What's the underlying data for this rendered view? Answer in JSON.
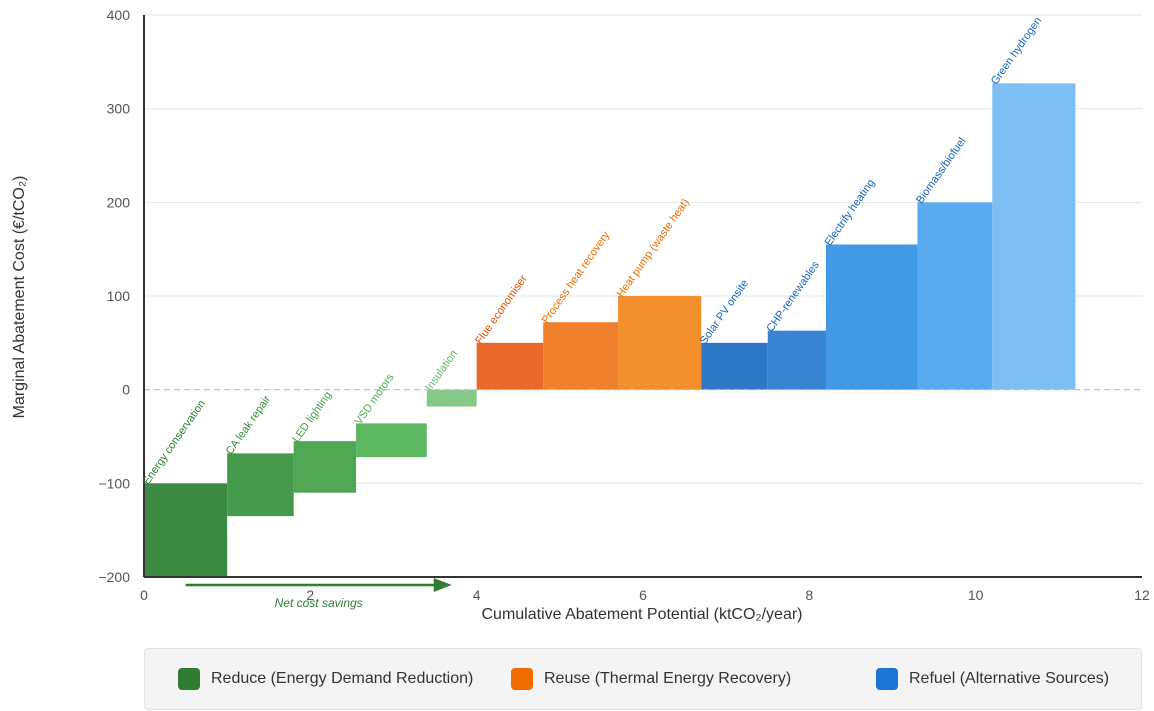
{
  "chart_data": {
    "type": "bar",
    "subtype": "marginal-abatement-cost-curve",
    "xlabel": "Cumulative Abatement Potential (ktCO₂/year)",
    "ylabel": "Marginal Abatement Cost (€/tCO₂)",
    "xlim": [
      0,
      12
    ],
    "ylim": [
      -200,
      400
    ],
    "xticks": [
      0,
      2,
      4,
      6,
      8,
      10,
      12
    ],
    "yticks": [
      -200,
      -100,
      0,
      100,
      200,
      300,
      400
    ],
    "ytick_labels": [
      "−200",
      "−100",
      "0",
      "100",
      "200",
      "300",
      "400"
    ],
    "grid": "horizontal",
    "legend_position": "bottom",
    "groups": [
      {
        "name": "Reduce (Energy Demand Reduction)",
        "color": "#2e7d32"
      },
      {
        "name": "Reuse (Thermal Energy Recovery)",
        "color": "#ef6c00"
      },
      {
        "name": "Refuel (Alternative Sources)",
        "color": "#1976d2"
      }
    ],
    "measures": [
      {
        "label": "Energy conservation",
        "group": 0,
        "x_start": 0.0,
        "potential": 1.0,
        "cost_low": -200,
        "cost_high": -100,
        "color": "#3d8a43",
        "label_color": "#2e7d32"
      },
      {
        "label": "CA leak repair",
        "group": 0,
        "x_start": 1.0,
        "potential": 0.8,
        "cost_low": -135,
        "cost_high": -68,
        "color": "#459b4b",
        "label_color": "#388e3c"
      },
      {
        "label": "LED lighting",
        "group": 0,
        "x_start": 1.8,
        "potential": 0.75,
        "cost_low": -110,
        "cost_high": -55,
        "color": "#4fa653",
        "label_color": "#43a047"
      },
      {
        "label": "VSD motors",
        "group": 0,
        "x_start": 2.55,
        "potential": 0.85,
        "cost_low": -72,
        "cost_high": -36,
        "color": "#5cb860",
        "label_color": "#4caf50"
      },
      {
        "label": "Insulation",
        "group": 0,
        "x_start": 3.4,
        "potential": 0.6,
        "cost_low": -18,
        "cost_high": 0,
        "color": "#86c888",
        "label_color": "#66bb6a"
      },
      {
        "label": "Flue economiser",
        "group": 1,
        "x_start": 4.0,
        "potential": 0.8,
        "cost_low": 0,
        "cost_high": 50,
        "color": "#e8692a",
        "label_color": "#e65100"
      },
      {
        "label": "Process heat recovery",
        "group": 1,
        "x_start": 4.8,
        "potential": 0.9,
        "cost_low": 0,
        "cost_high": 72,
        "color": "#ef7f2a",
        "label_color": "#ef6c00"
      },
      {
        "label": "Heat pump (waste heat)",
        "group": 1,
        "x_start": 5.7,
        "potential": 1.0,
        "cost_low": 0,
        "cost_high": 100,
        "color": "#f38f2c",
        "label_color": "#ef6c00"
      },
      {
        "label": "Solar PV onsite",
        "group": 2,
        "x_start": 6.7,
        "potential": 0.8,
        "cost_low": 0,
        "cost_high": 50,
        "color": "#2f78c8",
        "label_color": "#1565c0"
      },
      {
        "label": "CHP-renewables",
        "group": 2,
        "x_start": 7.5,
        "potential": 0.7,
        "cost_low": 0,
        "cost_high": 63,
        "color": "#3a84d4",
        "label_color": "#1565c0"
      },
      {
        "label": "Electrify heating",
        "group": 2,
        "x_start": 8.2,
        "potential": 1.1,
        "cost_low": 0,
        "cost_high": 155,
        "color": "#4299e5",
        "label_color": "#1565c0"
      },
      {
        "label": "Biomass/biofuel",
        "group": 2,
        "x_start": 9.3,
        "potential": 0.9,
        "cost_low": 0,
        "cost_high": 200,
        "color": "#5aaaf0",
        "label_color": "#1565c0"
      },
      {
        "label": "Green hydrogen",
        "group": 2,
        "x_start": 10.2,
        "potential": 1.0,
        "cost_low": 0,
        "cost_high": 327,
        "color": "#7dbff5",
        "label_color": "#1565c0"
      }
    ],
    "annotation": {
      "text": "Net cost savings",
      "x_from": 0.5,
      "x_to": 3.7
    }
  }
}
